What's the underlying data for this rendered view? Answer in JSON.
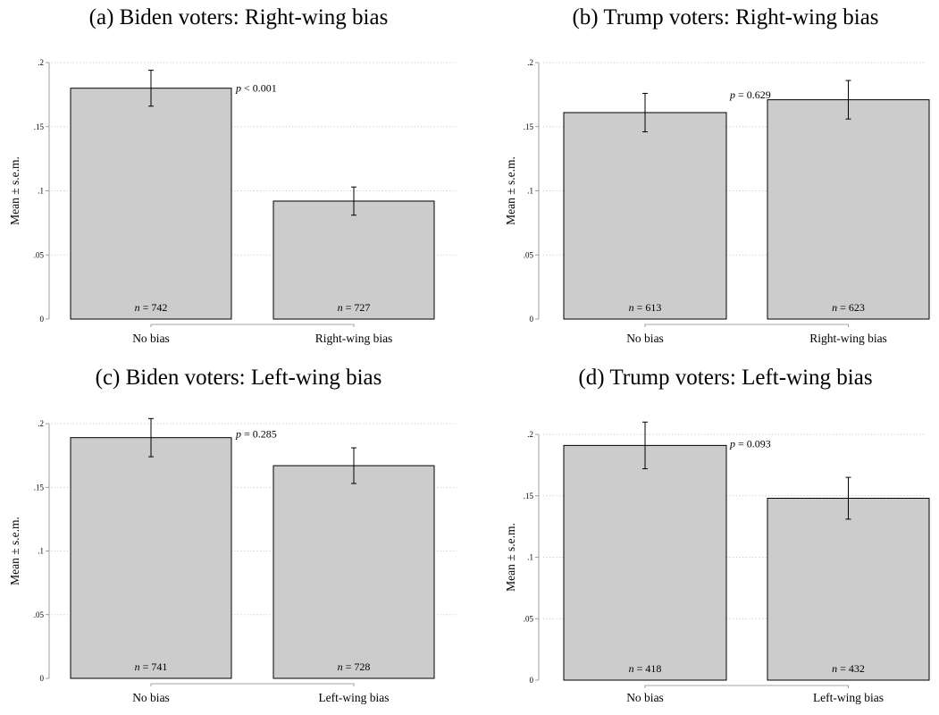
{
  "chart_data": [
    {
      "type": "bar",
      "title": "(a) Biden voters: Right-wing bias",
      "ylabel": "Mean ± s.e.m.",
      "ylim": [
        0,
        0.2
      ],
      "yticks": [
        0,
        0.05,
        0.1,
        0.15,
        0.2
      ],
      "ytick_labels": [
        "0",
        ".05",
        ".1",
        ".15",
        ".2"
      ],
      "grid": "horizontal dotted",
      "categories": [
        "No bias",
        "Right-wing bias"
      ],
      "values": [
        0.18,
        0.092
      ],
      "errors": [
        0.014,
        0.011
      ],
      "n_labels": [
        "742",
        "727"
      ],
      "p_label": "< 0.001"
    },
    {
      "type": "bar",
      "title": "(b) Trump voters: Right-wing bias",
      "ylabel": "Mean ± s.e.m.",
      "ylim": [
        0,
        0.2
      ],
      "yticks": [
        0,
        0.05,
        0.1,
        0.15,
        0.2
      ],
      "ytick_labels": [
        "0",
        ".05",
        ".1",
        ".15",
        ".2"
      ],
      "grid": "horizontal dotted",
      "categories": [
        "No bias",
        "Right-wing bias"
      ],
      "values": [
        0.161,
        0.171
      ],
      "errors": [
        0.015,
        0.015
      ],
      "n_labels": [
        "613",
        "623"
      ],
      "p_label": "= 0.629"
    },
    {
      "type": "bar",
      "title": "(c) Biden voters: Left-wing bias",
      "ylabel": "Mean ± s.e.m.",
      "ylim": [
        0,
        0.2
      ],
      "yticks": [
        0,
        0.05,
        0.1,
        0.15,
        0.2
      ],
      "ytick_labels": [
        "0",
        ".05",
        ".1",
        ".15",
        ".2"
      ],
      "grid": "horizontal dotted",
      "categories": [
        "No bias",
        "Left-wing bias"
      ],
      "values": [
        0.189,
        0.167
      ],
      "errors": [
        0.015,
        0.014
      ],
      "n_labels": [
        "741",
        "728"
      ],
      "p_label": "= 0.285"
    },
    {
      "type": "bar",
      "title": "(d) Trump voters: Left-wing bias",
      "ylabel": "Mean ± s.e.m.",
      "ylim": [
        0,
        0.2
      ],
      "yticks": [
        0,
        0.05,
        0.1,
        0.15,
        0.2
      ],
      "ytick_labels": [
        "0",
        ".05",
        ".1",
        ".15",
        ".2"
      ],
      "grid": "horizontal dotted",
      "categories": [
        "No bias",
        "Left-wing bias"
      ],
      "values": [
        0.191,
        0.148
      ],
      "errors": [
        0.019,
        0.017
      ],
      "n_labels": [
        "418",
        "432"
      ],
      "p_label": "= 0.093"
    }
  ],
  "style": {
    "bar_fill": "#cccccc",
    "bar_stroke": "#000000",
    "grid_color": "#c8c8c8",
    "axis_color": "#888888"
  }
}
